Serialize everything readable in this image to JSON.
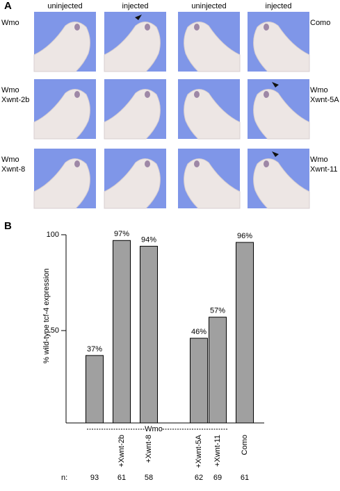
{
  "panel_labels": [
    "A",
    "B"
  ],
  "panel_a": {
    "column_headers": [
      "uninjected",
      "injected",
      "uninjected",
      "injected"
    ],
    "left_labels": [
      [
        "Wmo"
      ],
      [
        "Wmo",
        "Xwnt-2b"
      ],
      [
        "Wmo",
        "Xwnt-8"
      ]
    ],
    "right_labels": [
      [
        "Como"
      ],
      [
        "Wmo",
        "Xwnt-5A"
      ],
      [
        "Wmo",
        "Xwnt-11"
      ]
    ]
  },
  "chart_data": {
    "type": "bar",
    "y_label": "% wild-type tcf-4 expression",
    "categories": [
      null,
      "+Xwnt-2b",
      "+Xwnt-8",
      "+Xwnt-5A",
      "+Xwnt-11",
      "Como"
    ],
    "values": [
      37,
      97,
      94,
      46,
      57,
      96
    ],
    "value_labels": [
      "37%",
      "97%",
      "94%",
      "46%",
      "57%",
      "96%"
    ],
    "color": "#a0a0a0",
    "ylim": [
      0,
      100
    ],
    "yticks": [
      50,
      100
    ],
    "group_label": "Wmo",
    "n_label": "n:",
    "n": [
      93,
      61,
      58,
      62,
      69,
      61
    ]
  }
}
